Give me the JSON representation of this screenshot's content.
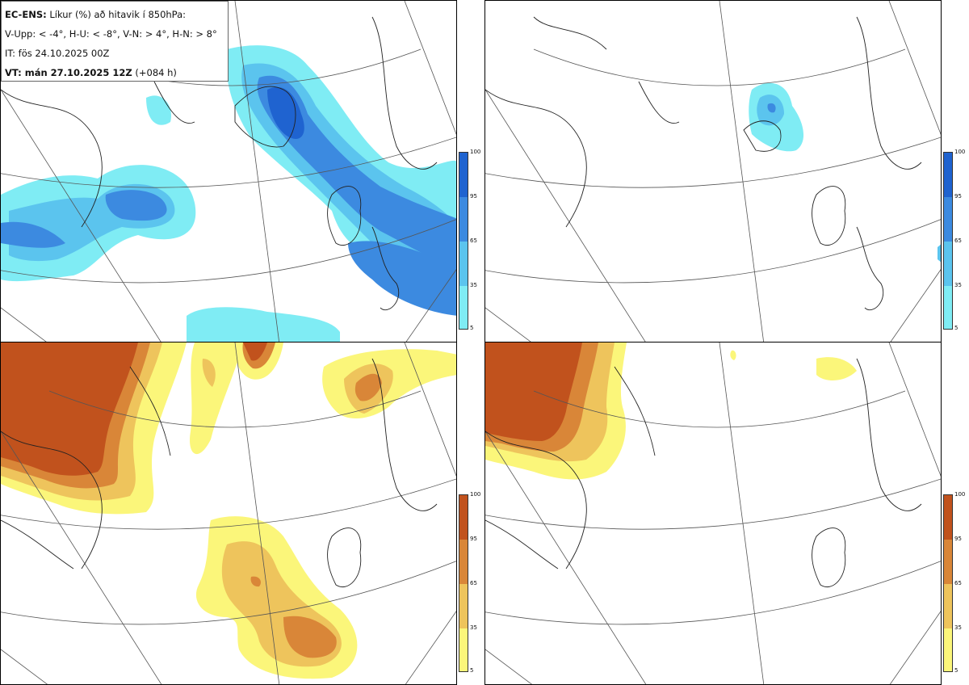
{
  "info": {
    "title_bold": "EC-ENS:",
    "title_rest": " Líkur (%) að hitavik í 850hPa:",
    "thresholds": "V-Upp: < -4°, H-U: < -8°, V-N: > 4°, H-N: > 8°",
    "init_time": "IT: fös 24.10.2025 00Z",
    "valid_bold": "VT: mán 27.10.2025 12Z",
    "valid_rest": " (+084 h)"
  },
  "colorbar": {
    "ticks": [
      "100",
      "95",
      "65",
      "35",
      "5"
    ],
    "cold_colors": [
      "#1f63d0",
      "#3c8ae0",
      "#5bc4ee",
      "#7fecf4"
    ],
    "warm_colors": [
      "#c1521d",
      "#d98638",
      "#eec45c",
      "#fbf67a"
    ]
  },
  "panels": [
    {
      "name": "V-Upp",
      "kind": "cold"
    },
    {
      "name": "H-U",
      "kind": "cold"
    },
    {
      "name": "V-N",
      "kind": "warm"
    },
    {
      "name": "H-N",
      "kind": "warm"
    }
  ]
}
